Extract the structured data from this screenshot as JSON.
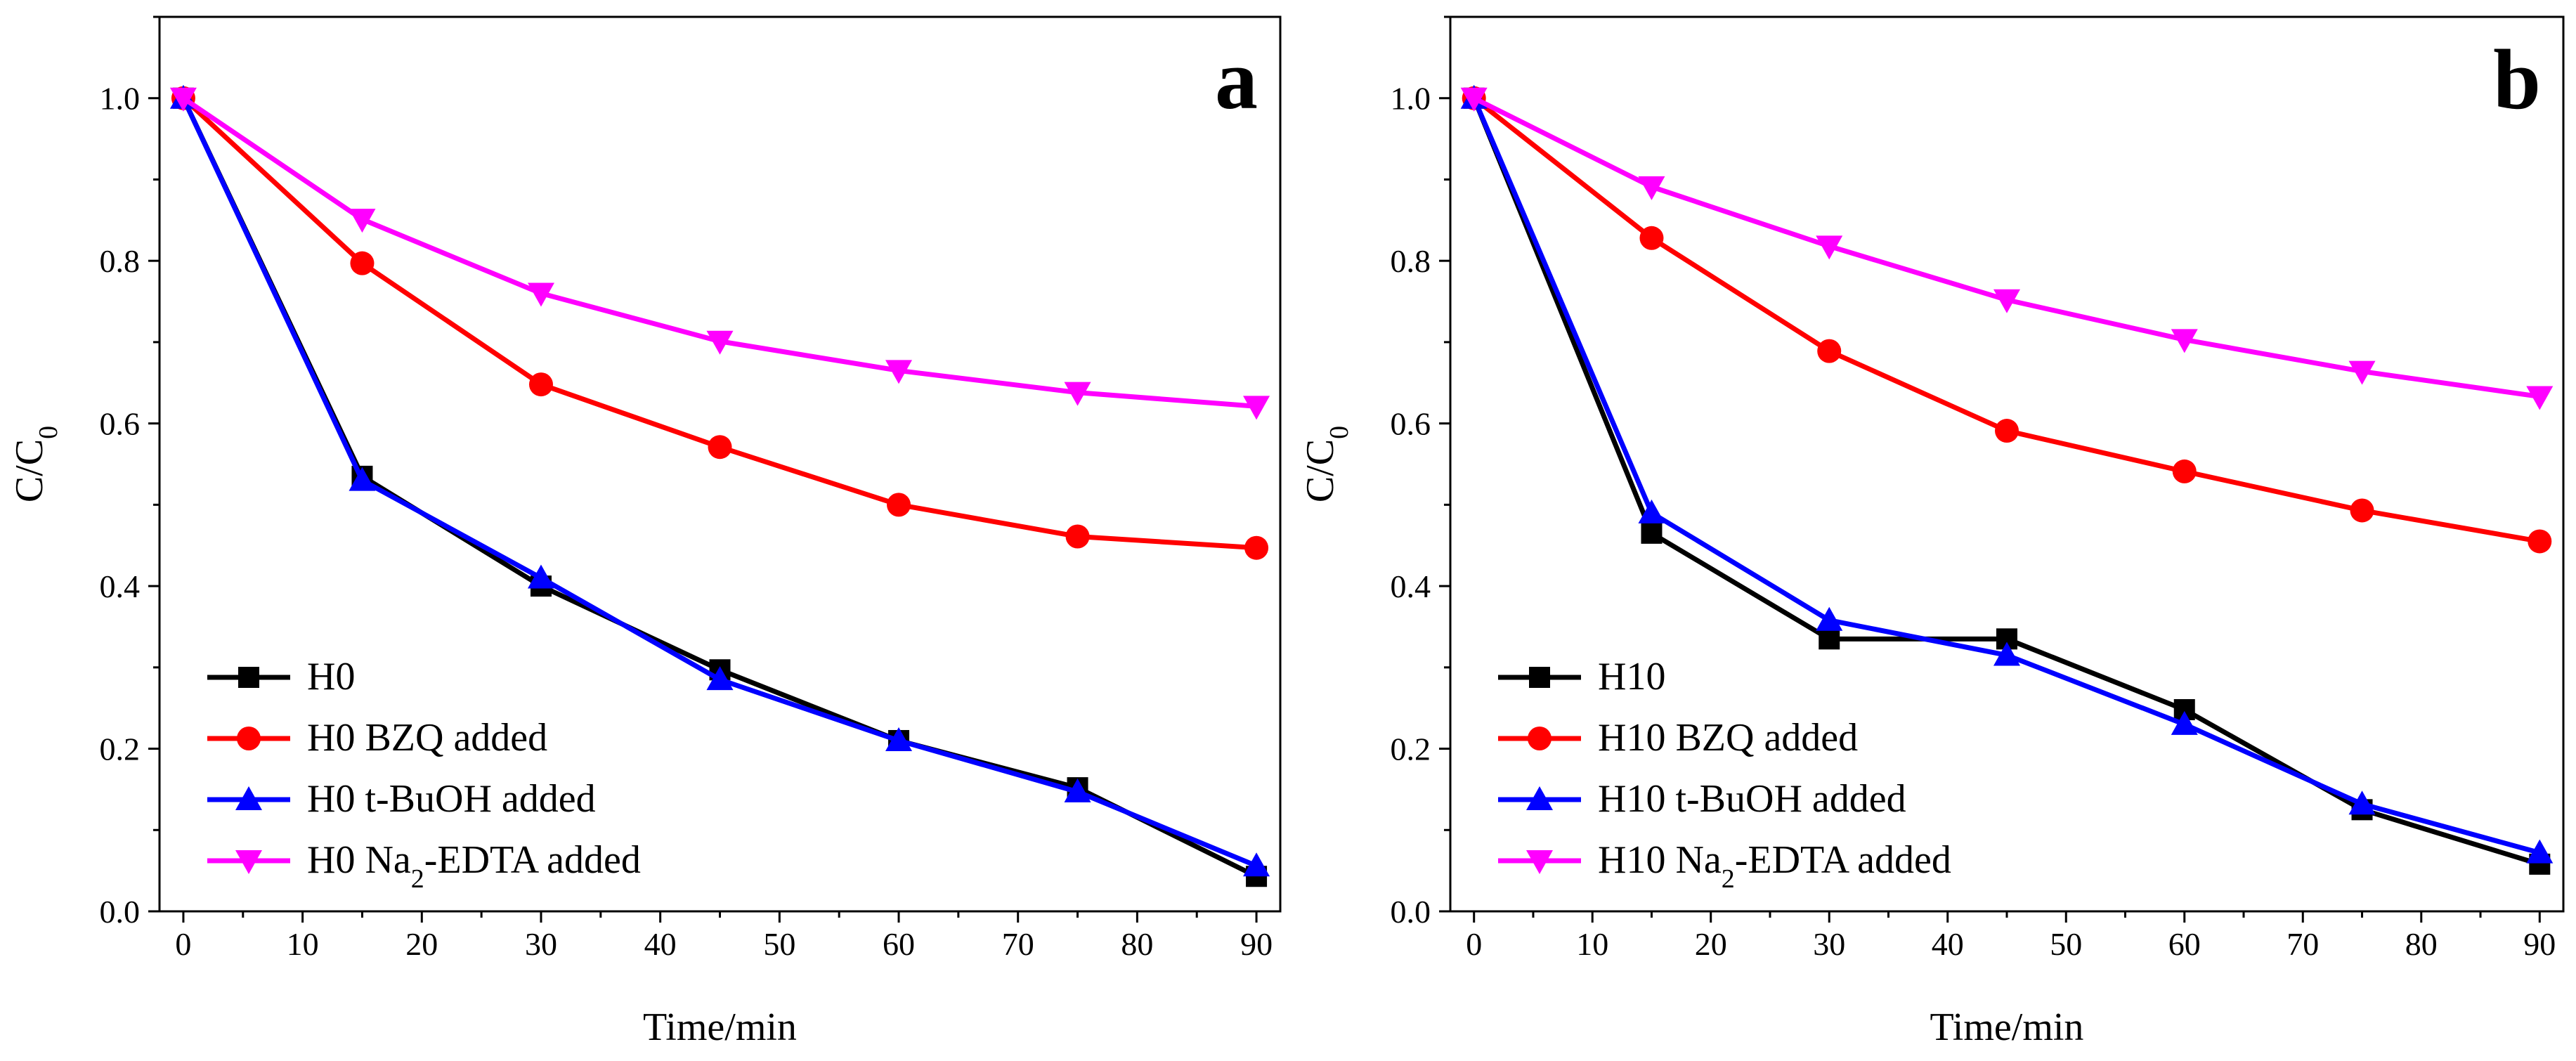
{
  "chart_data": [
    {
      "type": "line",
      "panel_label": "a",
      "xlabel": "Time/min",
      "ylabel_main": "C/C",
      "ylabel_sub": "0",
      "xlim": [
        -2,
        92
      ],
      "ylim": [
        0.0,
        1.1
      ],
      "xticks": [
        0,
        10,
        20,
        30,
        40,
        50,
        60,
        70,
        80,
        90
      ],
      "xtick_labels": [
        "0",
        "10",
        "20",
        "30",
        "40",
        "50",
        "60",
        "70",
        "80",
        "90"
      ],
      "yticks": [
        0.0,
        0.2,
        0.4,
        0.6,
        0.8,
        1.0
      ],
      "ytick_labels": [
        "0.0",
        "0.2",
        "0.4",
        "0.6",
        "0.8",
        "1.0"
      ],
      "legend_position": "bottom-left",
      "x": [
        0,
        15,
        30,
        45,
        60,
        75,
        90
      ],
      "series": [
        {
          "name": "H0",
          "label_parts": [
            "H0"
          ],
          "color": "#000000",
          "marker": "square",
          "values": [
            1.0,
            0.535,
            0.4,
            0.297,
            0.21,
            0.152,
            0.043
          ]
        },
        {
          "name": "H0 BZQ added",
          "label_parts": [
            "H0 BZQ added"
          ],
          "color": "#ff0000",
          "marker": "circle",
          "values": [
            1.0,
            0.797,
            0.648,
            0.571,
            0.5,
            0.461,
            0.447
          ]
        },
        {
          "name": "H0 t-BuOH added",
          "label_parts": [
            "H0 t-BuOH added"
          ],
          "color": "#0000ff",
          "marker": "triangle-up",
          "values": [
            1.0,
            0.53,
            0.41,
            0.285,
            0.21,
            0.147,
            0.056
          ]
        },
        {
          "name": "H0 Na2-EDTA added",
          "label_parts": [
            "H0 Na",
            "2",
            "-EDTA added"
          ],
          "color": "#ff00ff",
          "marker": "triangle-down",
          "values": [
            1.0,
            0.851,
            0.76,
            0.701,
            0.665,
            0.638,
            0.621
          ]
        }
      ]
    },
    {
      "type": "line",
      "panel_label": "b",
      "xlabel": "Time/min",
      "ylabel_main": "C/C",
      "ylabel_sub": "0",
      "xlim": [
        -2,
        92
      ],
      "ylim": [
        0.0,
        1.1
      ],
      "xticks": [
        0,
        10,
        20,
        30,
        40,
        50,
        60,
        70,
        80,
        90
      ],
      "xtick_labels": [
        "0",
        "10",
        "20",
        "30",
        "40",
        "50",
        "60",
        "70",
        "80",
        "90"
      ],
      "yticks": [
        0.0,
        0.2,
        0.4,
        0.6,
        0.8,
        1.0
      ],
      "ytick_labels": [
        "0.0",
        "0.2",
        "0.4",
        "0.6",
        "0.8",
        "1.0"
      ],
      "legend_position": "bottom-left",
      "x": [
        0,
        15,
        30,
        45,
        60,
        75,
        90
      ],
      "series": [
        {
          "name": "H10",
          "label_parts": [
            "H10"
          ],
          "color": "#000000",
          "marker": "square",
          "values": [
            1.0,
            0.465,
            0.335,
            0.335,
            0.248,
            0.125,
            0.058
          ]
        },
        {
          "name": "H10 BZQ added",
          "label_parts": [
            "H10 BZQ added"
          ],
          "color": "#ff0000",
          "marker": "circle",
          "values": [
            1.0,
            0.828,
            0.689,
            0.591,
            0.541,
            0.493,
            0.455
          ]
        },
        {
          "name": "H10 t-BuOH added",
          "label_parts": [
            "H10 t-BuOH added"
          ],
          "color": "#0000ff",
          "marker": "triangle-up",
          "values": [
            1.0,
            0.49,
            0.358,
            0.315,
            0.23,
            0.132,
            0.072
          ]
        },
        {
          "name": "H10 Na2-EDTA added",
          "label_parts": [
            "H10 Na",
            "2",
            "-EDTA added"
          ],
          "color": "#ff00ff",
          "marker": "triangle-down",
          "values": [
            1.0,
            0.891,
            0.818,
            0.752,
            0.703,
            0.664,
            0.633
          ]
        }
      ]
    }
  ]
}
